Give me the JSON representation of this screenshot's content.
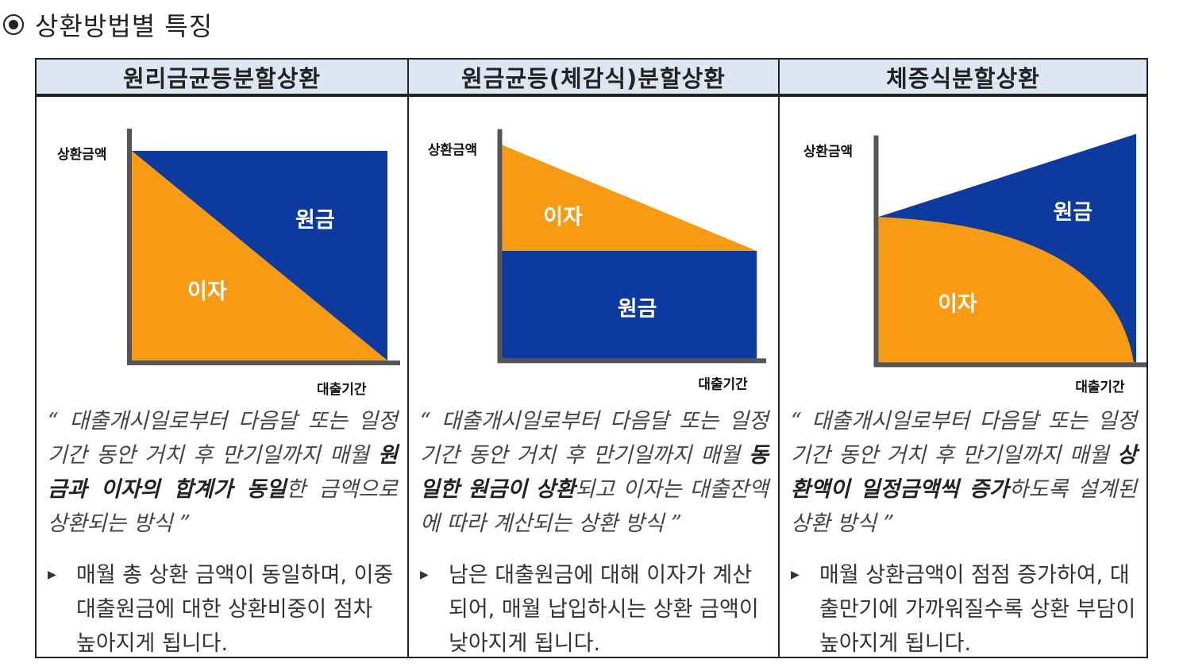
{
  "heading": "상환방법별 특징",
  "columns": [
    {
      "title": "원리금균등분할상환",
      "y_label": "상환금액",
      "x_label": "대출기간",
      "area_labels": {
        "principal": "원금",
        "interest": "이자"
      },
      "quote": {
        "open": "“ ",
        "pre": "대출개시일로부터 다음달 또는 일정기간 동안 거치 후 만기일까지 매월 ",
        "bold": "원금과 이자의 합계가 동일",
        "post": "한 금액으로 상환되는 방식 ",
        "close": "”"
      },
      "bullet": "매월 총 상환 금액이 동일하며, 이중 대출원금에 대한 상환비중이 점차 높아지게 됩니다."
    },
    {
      "title": "원금균등(체감식)분할상환",
      "y_label": "상환금액",
      "x_label": "대출기간",
      "area_labels": {
        "principal": "원금",
        "interest": "이자"
      },
      "quote": {
        "open": "“ ",
        "pre": "대출개시일로부터 다음달 또는 일정기간 동안 거치 후 만기일까지 매월 ",
        "bold": "동일한 원금이 상환",
        "post": "되고 이자는 대출잔액에 따라 계산되는 상환 방식 ",
        "close": "”"
      },
      "bullet": "남은 대출원금에 대해 이자가 계산되어, 매월 납입하시는 상환 금액이 낮아지게 됩니다."
    },
    {
      "title": "체증식분할상환",
      "y_label": "상환금액",
      "x_label": "대출기간",
      "area_labels": {
        "principal": "원금",
        "interest": "이자"
      },
      "quote": {
        "open": "“ ",
        "pre": "대출개시일로부터 다음달 또는 일정기간 동안 거치 후 만기일까지 매월 ",
        "bold": "상환액이 일정금액씩 증가",
        "post": "하도록 설계된 상환 방식 ",
        "close": "”"
      },
      "bullet": "매월 상환금액이 점점 증가하여, 대출만기에 가까워질수록 상환 부담이 높아지게 됩니다."
    }
  ],
  "colors": {
    "principal": "#0d3a9e",
    "interest": "#f79a14",
    "axis": "#555555",
    "header_bg": "#dde6f3"
  }
}
